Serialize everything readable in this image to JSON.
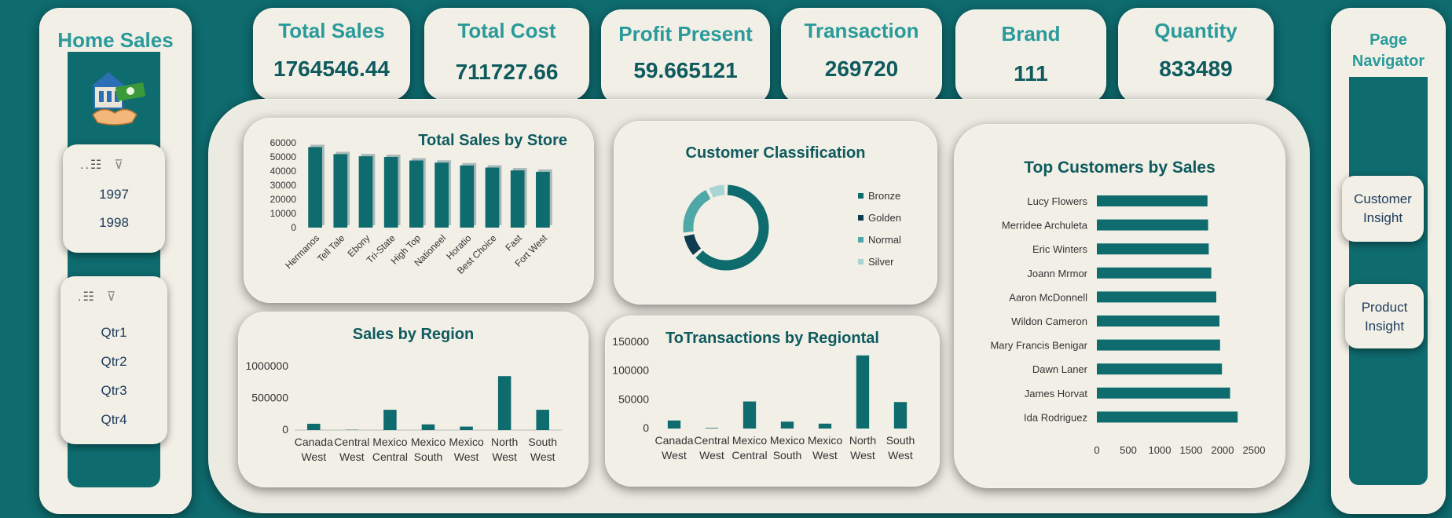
{
  "sidebar": {
    "title": "Home Sales",
    "year_slicer": {
      "items": [
        "1997",
        "1998"
      ]
    },
    "quarter_slicer": {
      "items": [
        "Qtr1",
        "Qtr2",
        "Qtr3",
        "Qtr4"
      ]
    }
  },
  "kpis": [
    {
      "label": "Total Sales",
      "value": "1764546.44"
    },
    {
      "label": "Total Cost",
      "value": "711727.66"
    },
    {
      "label": "Profit Present",
      "value": "59.665121"
    },
    {
      "label": "Transaction",
      "value": "269720"
    },
    {
      "label": "Brand",
      "value": "111"
    },
    {
      "label": "Quantity",
      "value": "833489"
    }
  ],
  "navigator": {
    "title_line1": "Page",
    "title_line2": "Navigator",
    "buttons": [
      {
        "line1": "Customer",
        "line2": "Insight"
      },
      {
        "line1": "Product",
        "line2": "Insight"
      }
    ]
  },
  "colors": {
    "primary": "#0e6b6e",
    "card": "#f1efe6",
    "bar": "#0e6b6e",
    "title": "#2a9a9a"
  },
  "chart_data": [
    {
      "id": "store",
      "type": "bar",
      "title": "Total Sales by Store",
      "categories": [
        "Hermanos",
        "Tell Tale",
        "Ebony",
        "Tri-State",
        "High Top",
        "Nationeel",
        "Horatio",
        "Best Choice",
        "Fast",
        "Fort West"
      ],
      "values": [
        57000,
        52000,
        50500,
        50000,
        47500,
        46000,
        44000,
        42500,
        40500,
        39500
      ],
      "yticks": [
        0,
        10000,
        20000,
        30000,
        40000,
        50000,
        60000
      ],
      "ylim": [
        0,
        60000
      ]
    },
    {
      "id": "classification",
      "type": "pie",
      "title": "Customer Classification",
      "categories": [
        "Bronze",
        "Golden",
        "Normal",
        "Silver"
      ],
      "values": [
        62,
        9,
        20,
        7
      ],
      "colors": [
        "#0e6b6e",
        "#0d3b4f",
        "#4ea8a8",
        "#a8d4d4"
      ]
    },
    {
      "id": "region",
      "type": "bar",
      "title": "Sales by Region",
      "categories": [
        [
          "Canada",
          "West"
        ],
        [
          "Central",
          "West"
        ],
        [
          "Mexico",
          "Central"
        ],
        [
          "Mexico",
          "South"
        ],
        [
          "Mexico",
          "West"
        ],
        [
          "North",
          "West"
        ],
        [
          "South",
          "West"
        ]
      ],
      "values": [
        100000,
        5000,
        320000,
        90000,
        55000,
        850000,
        320000
      ],
      "yticks": [
        0,
        500000,
        1000000
      ],
      "ylim": [
        0,
        1100000
      ]
    },
    {
      "id": "transactions",
      "type": "bar",
      "title": "ToTransactions by Regiontal",
      "categories": [
        [
          "Canada",
          "West"
        ],
        [
          "Central",
          "West"
        ],
        [
          "Mexico",
          "Central"
        ],
        [
          "Mexico",
          "South"
        ],
        [
          "Mexico",
          "West"
        ],
        [
          "North",
          "West"
        ],
        [
          "South",
          "West"
        ]
      ],
      "values": [
        14000,
        1000,
        47000,
        12000,
        8500,
        127000,
        46000
      ],
      "yticks": [
        0,
        50000,
        100000,
        150000
      ],
      "ylim": [
        0,
        150000
      ]
    },
    {
      "id": "customers",
      "type": "bar",
      "title": "Top Customers by Sales",
      "categories": [
        "Lucy Flowers",
        "Merridee Archuleta",
        "Eric Winters",
        "Joann Mrmor",
        "Aaron McDonnell",
        "Wildon Cameron",
        "Mary Francis Benigar",
        "Dawn Laner",
        "James Horvat",
        "Ida Rodriguez"
      ],
      "values": [
        1760,
        1770,
        1780,
        1820,
        1900,
        1950,
        1960,
        1990,
        2120,
        2240
      ],
      "xticks": [
        0,
        500,
        1000,
        1500,
        2000,
        2500
      ],
      "xlim": [
        0,
        2500
      ]
    }
  ]
}
